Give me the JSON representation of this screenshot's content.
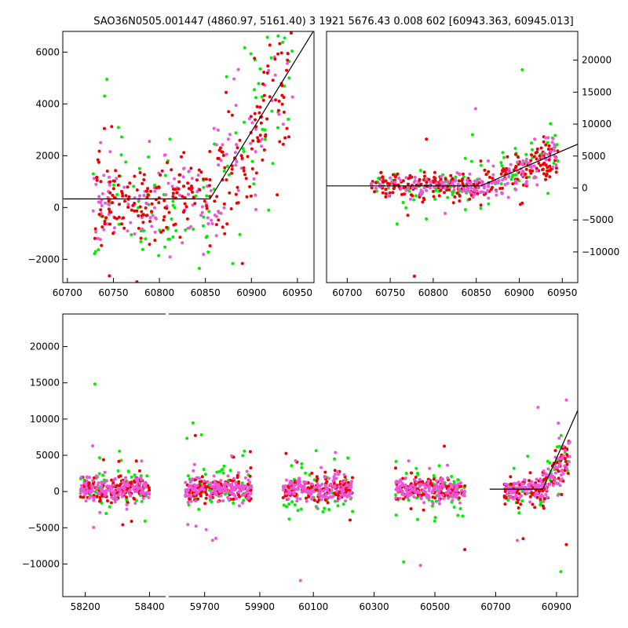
{
  "title": "SAO36N0505.001447 (4860.97, 5161.40)   3 1921 5676.43 0.008 602 [60943.363, 60945.013]",
  "colors": {
    "green": "#00ee00",
    "red": "#ee0000",
    "magenta": "#ee55dd",
    "line": "#000000",
    "frame": "#000000"
  },
  "chart_data": [
    {
      "name": "top-left-zoom",
      "type": "scatter",
      "xlim": [
        60695,
        60968
      ],
      "ylim": [
        -2900,
        6800
      ],
      "xticks": [
        "60700",
        "60750",
        "60800",
        "60850",
        "60900",
        "60950"
      ],
      "xtick_values": [
        60700,
        60750,
        60800,
        60850,
        60900,
        60950
      ],
      "yticks": [
        "6000",
        "4000",
        "2000",
        "0",
        "−2000"
      ],
      "ytick_values": [
        6000,
        4000,
        2000,
        0,
        -2000
      ],
      "ytick_side": "left",
      "model_line": [
        [
          60695,
          330
        ],
        [
          60855,
          330
        ],
        [
          60968,
          6850
        ]
      ],
      "series": [
        {
          "name": "green",
          "x_range": [
            60728,
            60945
          ],
          "n": 110,
          "seed": 11
        },
        {
          "name": "magenta",
          "x_range": [
            60728,
            60945
          ],
          "n": 150,
          "seed": 23
        },
        {
          "name": "red",
          "x_range": [
            60728,
            60945
          ],
          "n": 260,
          "seed": 37
        }
      ]
    },
    {
      "name": "top-right-zoom",
      "type": "scatter",
      "xlim": [
        60676,
        60968
      ],
      "ylim": [
        -14800,
        24500
      ],
      "xticks": [
        "60700",
        "60750",
        "60800",
        "60850",
        "60900",
        "60950"
      ],
      "xtick_values": [
        60700,
        60750,
        60800,
        60850,
        60900,
        60950
      ],
      "yticks": [
        "20000",
        "15000",
        "10000",
        "5000",
        "0",
        "−5000",
        "−10000"
      ],
      "ytick_values": [
        20000,
        15000,
        10000,
        5000,
        0,
        -5000,
        -10000
      ],
      "ytick_side": "right",
      "model_line": [
        [
          60676,
          330
        ],
        [
          60855,
          330
        ],
        [
          60968,
          6850
        ]
      ],
      "series": [
        {
          "name": "green",
          "x_range": [
            60728,
            60945
          ],
          "n": 110,
          "seed": 51
        },
        {
          "name": "red",
          "x_range": [
            60728,
            60945
          ],
          "n": 260,
          "seed": 63
        },
        {
          "name": "magenta",
          "x_range": [
            60728,
            60945
          ],
          "n": 170,
          "seed": 77
        }
      ]
    },
    {
      "name": "bottom-full-lightcurve",
      "type": "scatter",
      "ylim": [
        -14500,
        24500
      ],
      "yticks": [
        "20000",
        "15000",
        "10000",
        "5000",
        "0",
        "−5000",
        "−10000"
      ],
      "ytick_values": [
        20000,
        15000,
        10000,
        5000,
        0,
        -5000,
        -10000
      ],
      "ytick_side": "left",
      "segments": [
        {
          "xlim": [
            58130,
            58450
          ],
          "xticks": [
            "58200",
            "58400"
          ],
          "xtick_values": [
            58200,
            58400
          ]
        },
        {
          "xlim": [
            59570,
            59940
          ],
          "xticks": [
            "59700",
            "59900"
          ],
          "xtick_values": [
            59700,
            59900
          ]
        },
        {
          "xlim": [
            59960,
            60970
          ],
          "xticks": [
            "60100",
            "60300",
            "60500",
            "60700",
            "60900"
          ],
          "xtick_values": [
            60100,
            60300,
            60500,
            60700,
            60900
          ]
        }
      ],
      "seasons": [
        {
          "x_range": [
            58185,
            58400
          ],
          "seg": 0
        },
        {
          "x_range": [
            59630,
            59870
          ],
          "seg": 1
        },
        {
          "x_range": [
            60000,
            60230
          ],
          "seg": 2
        },
        {
          "x_range": [
            60370,
            60600
          ],
          "seg": 2
        },
        {
          "x_range": [
            60728,
            60945
          ],
          "seg": 2,
          "rising": true
        }
      ],
      "model_line": [
        [
          60680,
          330
        ],
        [
          60855,
          330
        ],
        [
          60970,
          11200
        ]
      ],
      "series": [
        {
          "name": "green",
          "n_per_season": 55,
          "seed": 101
        },
        {
          "name": "red",
          "n_per_season": 140,
          "seed": 131
        },
        {
          "name": "magenta",
          "n_per_season": 150,
          "seed": 171
        }
      ]
    }
  ]
}
